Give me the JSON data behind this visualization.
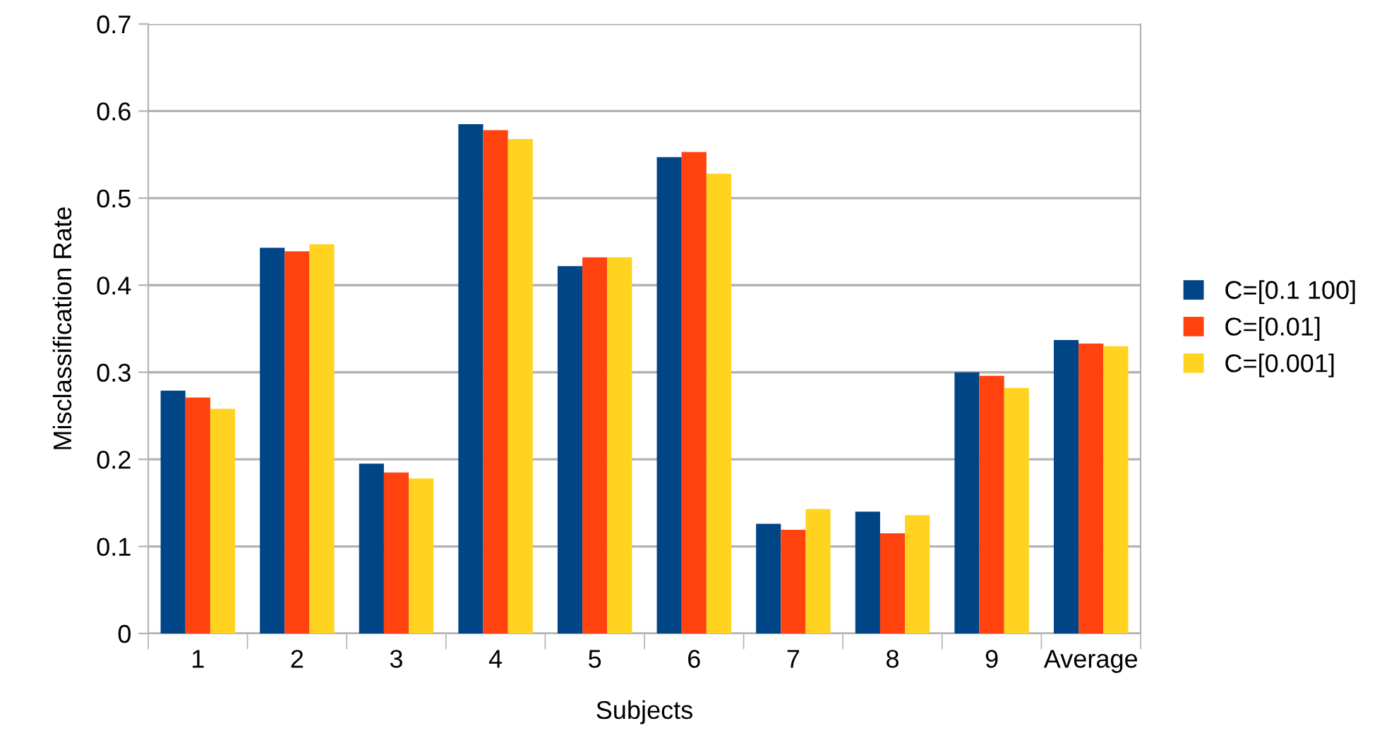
{
  "chart_data": {
    "type": "bar",
    "xlabel": "Subjects",
    "ylabel": "Misclassification Rate",
    "categories": [
      "1",
      "2",
      "3",
      "4",
      "5",
      "6",
      "7",
      "8",
      "9",
      "Average"
    ],
    "series": [
      {
        "name": "C=[0.1 100]",
        "color": "#004586",
        "values": [
          0.279,
          0.443,
          0.195,
          0.585,
          0.422,
          0.547,
          0.126,
          0.14,
          0.3,
          0.337
        ]
      },
      {
        "name": "C=[0.01]",
        "color": "#ff420e",
        "values": [
          0.271,
          0.439,
          0.185,
          0.578,
          0.432,
          0.553,
          0.119,
          0.115,
          0.296,
          0.333
        ]
      },
      {
        "name": "C=[0.001]",
        "color": "#ffd320",
        "values": [
          0.258,
          0.447,
          0.178,
          0.568,
          0.432,
          0.528,
          0.143,
          0.136,
          0.282,
          0.33
        ]
      }
    ],
    "ylim": [
      0,
      0.7
    ],
    "yticks": [
      0,
      0.1,
      0.2,
      0.3,
      0.4,
      0.5,
      0.6,
      0.7
    ],
    "grid": "y",
    "legend": "right"
  }
}
